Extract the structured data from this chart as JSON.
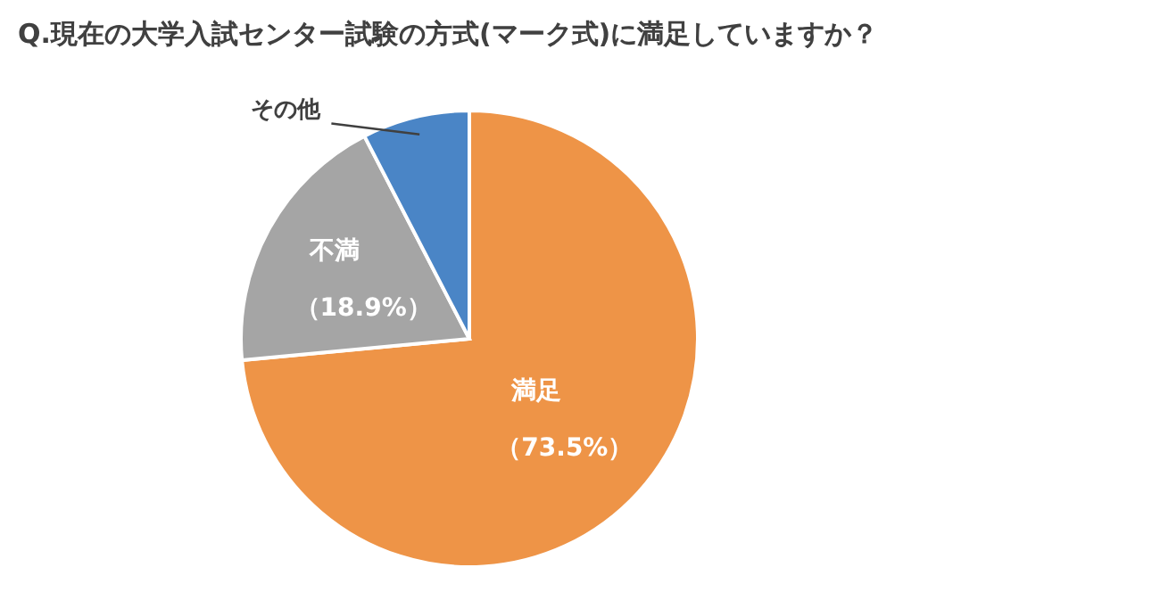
{
  "chart_data": {
    "type": "pie",
    "title": "Q.現在の大学入試センター試験の方式(マーク式)に満足していますか？",
    "categories": [
      "満足",
      "不満",
      "その他"
    ],
    "values": [
      73.5,
      18.9,
      7.6
    ],
    "value_labels": [
      "（73.5%）",
      "（18.9%）",
      null
    ],
    "colors": [
      "#ee9447",
      "#a5a5a5",
      "#4a85c6"
    ],
    "legend": false
  }
}
